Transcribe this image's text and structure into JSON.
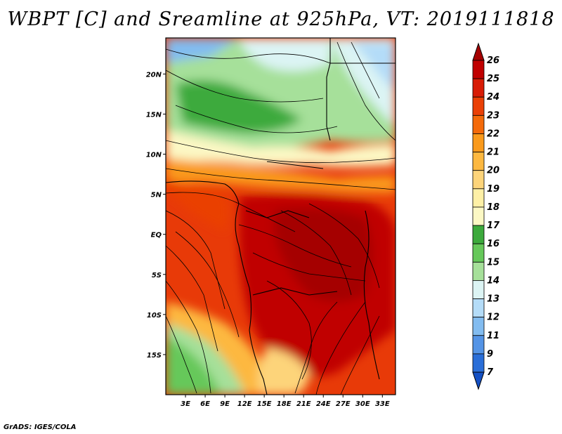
{
  "title": "WBPT [C] and Sreamline at 925hPa, VT: 2019111818",
  "credit": "GrADS: IGES/COLA",
  "map": {
    "lat_labels": [
      "20N",
      "15N",
      "10N",
      "5N",
      "EQ",
      "5S",
      "10S",
      "15S"
    ],
    "lon_labels": [
      "3E",
      "6E",
      "9E",
      "12E",
      "15E",
      "18E",
      "21E",
      "24E",
      "27E",
      "30E",
      "33E"
    ],
    "lat_range": [
      -20,
      24.5
    ],
    "lon_range": [
      0,
      35
    ]
  },
  "colorbar": {
    "levels": [
      "26",
      "25",
      "24",
      "23",
      "22",
      "21",
      "20",
      "19",
      "18",
      "17",
      "16",
      "15",
      "14",
      "13",
      "12",
      "11",
      "9",
      "7"
    ],
    "colors": [
      "#a50000",
      "#c00000",
      "#d81c06",
      "#ea4006",
      "#f46a0a",
      "#fa9a1c",
      "#fdb840",
      "#fdd47a",
      "#fef0a6",
      "#fcf8c4",
      "#3caa3c",
      "#66c85a",
      "#a6e09a",
      "#dcf4f4",
      "#b4dcf8",
      "#82bcf0",
      "#5494e6",
      "#2a6ed8",
      "#1450c4"
    ]
  }
}
